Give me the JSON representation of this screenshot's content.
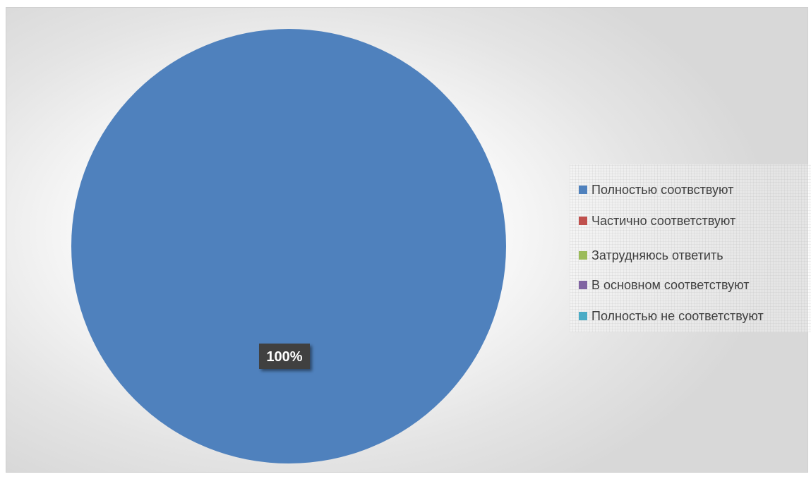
{
  "chart_data": {
    "type": "pie",
    "series": [
      {
        "name": "Полностью соотвствуют",
        "value": 100,
        "label": "100%",
        "color": "#4F81BD"
      },
      {
        "name": "Частично соответствуют",
        "value": 0,
        "color": "#C0504D"
      },
      {
        "name": "Затрудняюсь ответить",
        "value": 0,
        "color": "#9BBB59"
      },
      {
        "name": "В основном соответствуют",
        "value": 0,
        "color": "#8064A2"
      },
      {
        "name": "Полностью не соответствуют",
        "value": 0,
        "color": "#4BACC6"
      }
    ],
    "data_label_style": {
      "background": "#404040",
      "color": "#ffffff"
    },
    "legend_position": "right"
  }
}
